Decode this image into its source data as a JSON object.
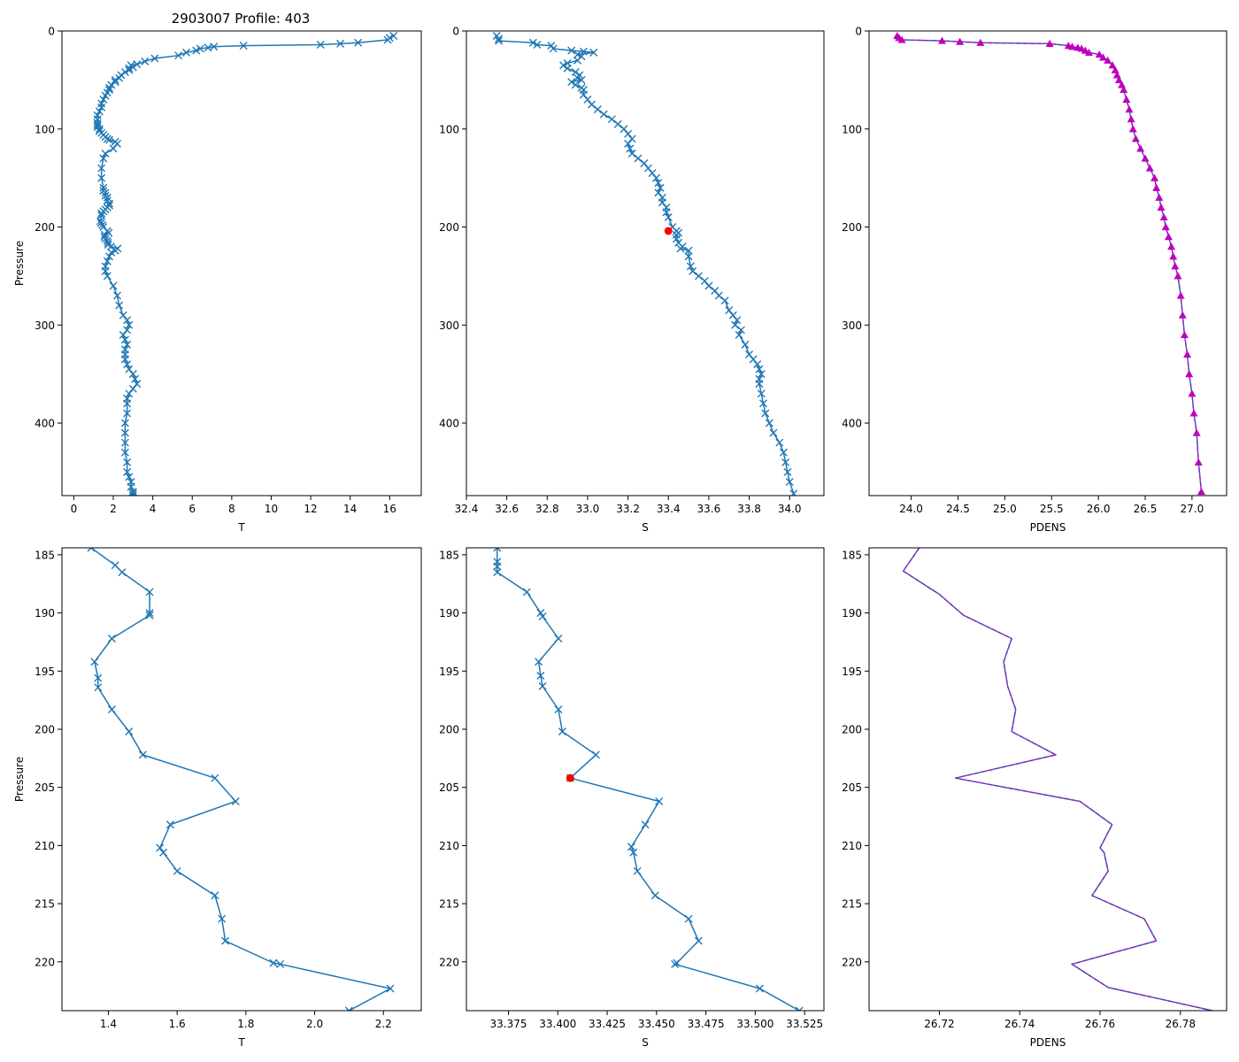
{
  "figure": {
    "title": "2903007 Profile: 403"
  },
  "colors": {
    "line": "#1f77b4",
    "density": "#bf00bf",
    "highlight": "#ff0000",
    "axis": "#000000"
  },
  "chart_data": [
    {
      "id": "top-temperature",
      "type": "line",
      "marker": "x",
      "title": "2903007 Profile: 403",
      "xlabel": "T",
      "ylabel": "Pressure",
      "xlim": [
        -0.6,
        17.6
      ],
      "ylim": [
        474,
        0
      ],
      "xticks": [
        0,
        2,
        4,
        6,
        8,
        10,
        12,
        14,
        16
      ],
      "xtick_labels": [
        "0",
        "2",
        "4",
        "6",
        "8",
        "10",
        "12",
        "14",
        "16"
      ],
      "yticks": [
        0,
        100,
        200,
        300,
        400
      ],
      "ytick_labels": [
        "0",
        "100",
        "200",
        "300",
        "400"
      ],
      "x": [
        16.2,
        16.0,
        15.9,
        14.4,
        13.5,
        12.5,
        8.6,
        7.1,
        6.8,
        6.4,
        6.2,
        5.7,
        5.3,
        4.1,
        3.6,
        3.2,
        2.9,
        3.0,
        2.8,
        2.8,
        2.6,
        2.4,
        2.3,
        2.1,
        2.1,
        1.9,
        1.8,
        1.8,
        1.7,
        1.6,
        1.5,
        1.4,
        1.4,
        1.3,
        1.2,
        1.2,
        1.2,
        1.2,
        1.2,
        1.3,
        1.3,
        1.4,
        1.5,
        1.6,
        1.7,
        1.8,
        2.1,
        2.2,
        2.0,
        1.6,
        1.5,
        1.4,
        1.4,
        1.5,
        1.5,
        1.6,
        1.6,
        1.7,
        1.7,
        1.8,
        1.8,
        1.7,
        1.6,
        1.5,
        1.4,
        1.4,
        1.35,
        1.38,
        1.45,
        1.5,
        1.7,
        1.77,
        1.57,
        1.55,
        1.6,
        1.7,
        1.73,
        1.74,
        1.88,
        2.22,
        2.1,
        1.9,
        1.8,
        1.7,
        1.6,
        1.6,
        1.7,
        2.0,
        2.2,
        2.3,
        2.5,
        2.7,
        2.8,
        2.7,
        2.5,
        2.6,
        2.7,
        2.6,
        2.6,
        2.6,
        2.7,
        2.8,
        3.0,
        3.1,
        3.2,
        3.0,
        2.8,
        2.7,
        2.7,
        2.7,
        2.6,
        2.6,
        2.6,
        2.6,
        2.7,
        2.7,
        2.8,
        2.9,
        2.9,
        3.0,
        3.0,
        3.0
      ],
      "y": [
        5,
        7,
        9,
        12,
        13,
        14,
        15,
        16,
        17,
        18,
        20,
        22,
        25,
        28,
        31,
        34,
        35,
        37,
        38,
        40,
        42,
        45,
        48,
        50,
        52,
        55,
        58,
        60,
        63,
        66,
        70,
        74,
        78,
        82,
        86,
        90,
        94,
        96,
        98,
        100,
        102,
        104,
        106,
        108,
        110,
        111,
        113,
        115,
        120,
        125,
        130,
        140,
        150,
        160,
        163,
        165,
        168,
        170,
        173,
        176,
        178,
        180,
        182,
        184,
        186,
        188,
        194,
        196,
        198,
        200,
        204,
        206,
        208,
        210,
        212,
        214,
        216,
        218,
        220,
        222,
        224,
        226,
        230,
        235,
        240,
        245,
        250,
        260,
        270,
        280,
        290,
        295,
        300,
        305,
        310,
        315,
        320,
        325,
        330,
        335,
        340,
        345,
        350,
        355,
        360,
        365,
        370,
        375,
        380,
        390,
        400,
        410,
        420,
        430,
        440,
        450,
        455,
        460,
        465,
        470,
        472,
        474
      ]
    },
    {
      "id": "top-salinity",
      "type": "line",
      "marker": "x",
      "title": "",
      "xlabel": "S",
      "ylabel": "",
      "xlim": [
        32.4,
        34.17
      ],
      "ylim": [
        474,
        0
      ],
      "xticks": [
        32.4,
        32.6,
        32.8,
        33.0,
        33.2,
        33.4,
        33.6,
        33.8,
        34.0
      ],
      "xtick_labels": [
        "32.4",
        "32.6",
        "32.8",
        "33.0",
        "33.2",
        "33.4",
        "33.6",
        "33.8",
        "34.0"
      ],
      "yticks": [
        0,
        100,
        200,
        300,
        400
      ],
      "ytick_labels": [
        "0",
        "100",
        "200",
        "300",
        "400"
      ],
      "highlight": {
        "x": 33.4,
        "y": 204
      },
      "x": [
        32.55,
        32.56,
        32.56,
        32.73,
        32.75,
        32.82,
        32.83,
        32.92,
        32.98,
        33.03,
        32.95,
        32.97,
        32.95,
        32.9,
        32.88,
        32.9,
        32.94,
        32.96,
        32.95,
        32.97,
        32.92,
        32.94,
        32.97,
        32.98,
        32.98,
        33.0,
        33.02,
        33.05,
        33.08,
        33.12,
        33.15,
        33.18,
        33.2,
        33.22,
        33.2,
        33.21,
        33.22,
        33.25,
        33.28,
        33.3,
        33.32,
        33.34,
        33.35,
        33.36,
        33.35,
        33.37,
        33.37,
        33.39,
        33.39,
        33.4,
        33.42,
        33.44,
        33.45,
        33.44,
        33.44,
        33.45,
        33.47,
        33.46,
        33.5,
        33.5,
        33.51,
        33.52,
        33.55,
        33.58,
        33.6,
        33.63,
        33.65,
        33.68,
        33.7,
        33.72,
        33.74,
        33.73,
        33.76,
        33.75,
        33.78,
        33.8,
        33.82,
        33.84,
        33.85,
        33.86,
        33.85,
        33.85,
        33.86,
        33.87,
        33.88,
        33.9,
        33.92,
        33.95,
        33.97,
        33.98,
        33.99,
        34.0,
        34.02
      ],
      "y": [
        5,
        8,
        10,
        12,
        14,
        15,
        18,
        20,
        21,
        22,
        24,
        26,
        30,
        33,
        35,
        38,
        42,
        45,
        48,
        50,
        52,
        55,
        58,
        60,
        65,
        70,
        75,
        80,
        85,
        90,
        95,
        100,
        105,
        110,
        115,
        120,
        125,
        130,
        135,
        140,
        145,
        150,
        155,
        160,
        165,
        170,
        175,
        180,
        185,
        190,
        200,
        204,
        206,
        208,
        212,
        216,
        220,
        222,
        224,
        230,
        240,
        245,
        250,
        255,
        260,
        265,
        270,
        275,
        285,
        290,
        295,
        300,
        305,
        310,
        320,
        330,
        335,
        340,
        345,
        350,
        355,
        360,
        370,
        380,
        390,
        400,
        410,
        420,
        430,
        440,
        450,
        460,
        472
      ]
    },
    {
      "id": "top-density",
      "type": "line",
      "marker": "triangle",
      "title": "",
      "xlabel": "PDENS",
      "ylabel": "",
      "xlim": [
        23.55,
        27.37
      ],
      "ylim": [
        474,
        0
      ],
      "xticks": [
        24.0,
        24.5,
        25.0,
        25.5,
        26.0,
        26.5,
        27.0
      ],
      "xtick_labels": [
        "24.0",
        "24.5",
        "25.0",
        "25.5",
        "26.0",
        "26.5",
        "27.0"
      ],
      "yticks": [
        0,
        100,
        200,
        300,
        400
      ],
      "ytick_labels": [
        "0",
        "100",
        "200",
        "300",
        "400"
      ],
      "x": [
        23.85,
        23.87,
        23.9,
        24.33,
        24.52,
        24.74,
        25.48,
        25.68,
        25.72,
        25.78,
        25.82,
        25.86,
        25.9,
        26.01,
        26.05,
        26.1,
        26.15,
        26.18,
        26.2,
        26.22,
        26.25,
        26.27,
        26.3,
        26.33,
        26.35,
        26.37,
        26.4,
        26.45,
        26.5,
        26.55,
        26.6,
        26.62,
        26.65,
        26.67,
        26.7,
        26.72,
        26.75,
        26.78,
        26.8,
        26.82,
        26.85,
        26.88,
        26.9,
        26.92,
        26.95,
        26.97,
        27.0,
        27.02,
        27.05,
        27.07,
        27.1
      ],
      "y": [
        5,
        7,
        9,
        10,
        11,
        12,
        13,
        15,
        16,
        17,
        18,
        20,
        22,
        24,
        27,
        30,
        35,
        40,
        45,
        50,
        55,
        60,
        70,
        80,
        90,
        100,
        110,
        120,
        130,
        140,
        150,
        160,
        170,
        180,
        190,
        200,
        210,
        220,
        230,
        240,
        250,
        270,
        290,
        310,
        330,
        350,
        370,
        390,
        410,
        440,
        470
      ]
    },
    {
      "id": "bottom-temperature",
      "type": "line",
      "marker": "x",
      "title": "",
      "xlabel": "T",
      "ylabel": "Pressure",
      "xlim": [
        1.265,
        2.31
      ],
      "ylim": [
        224.2,
        184.4
      ],
      "xticks": [
        1.4,
        1.6,
        1.8,
        2.0,
        2.2
      ],
      "xtick_labels": [
        "1.4",
        "1.6",
        "1.8",
        "2.0",
        "2.2"
      ],
      "yticks": [
        185,
        190,
        195,
        200,
        205,
        210,
        215,
        220
      ],
      "ytick_labels": [
        "185",
        "190",
        "195",
        "200",
        "205",
        "210",
        "215",
        "220"
      ],
      "x": [
        1.35,
        1.42,
        1.44,
        1.52,
        1.52,
        1.52,
        1.41,
        1.36,
        1.37,
        1.37,
        1.41,
        1.46,
        1.5,
        1.71,
        1.77,
        1.58,
        1.55,
        1.56,
        1.6,
        1.71,
        1.73,
        1.74,
        1.88,
        1.9,
        2.22,
        2.1
      ],
      "y": [
        184.4,
        185.9,
        186.5,
        188.2,
        190.0,
        190.2,
        192.2,
        194.2,
        195.6,
        196.4,
        198.3,
        200.2,
        202.2,
        204.2,
        206.2,
        208.2,
        210.2,
        210.6,
        212.2,
        214.3,
        216.3,
        218.2,
        220.1,
        220.2,
        222.3,
        224.2
      ]
    },
    {
      "id": "bottom-salinity",
      "type": "line",
      "marker": "x",
      "title": "",
      "xlabel": "S",
      "ylabel": "",
      "xlim": [
        33.3537,
        33.5348
      ],
      "ylim": [
        224.2,
        184.4
      ],
      "xticks": [
        33.375,
        33.4,
        33.425,
        33.45,
        33.475,
        33.5,
        33.525
      ],
      "xtick_labels": [
        "33.375",
        "33.400",
        "33.425",
        "33.450",
        "33.475",
        "33.500",
        "33.525"
      ],
      "yticks": [
        185,
        190,
        195,
        200,
        205,
        210,
        215,
        220
      ],
      "ytick_labels": [
        "185",
        "190",
        "195",
        "200",
        "205",
        "210",
        "215",
        "220"
      ],
      "highlight": {
        "x": 33.4063,
        "y": 204.2
      },
      "x": [
        33.3693,
        33.3693,
        33.3693,
        33.3693,
        33.3843,
        33.3913,
        33.3923,
        33.4003,
        33.3903,
        33.3913,
        33.3923,
        33.4003,
        33.4023,
        33.4193,
        33.4063,
        33.4513,
        33.4443,
        33.4373,
        33.4383,
        33.4403,
        33.4493,
        33.4663,
        33.4713,
        33.4603,
        33.4593,
        33.5023,
        33.5223
      ],
      "y": [
        184.4,
        185.6,
        186.0,
        186.5,
        188.2,
        190.0,
        190.3,
        192.2,
        194.2,
        195.4,
        196.3,
        198.3,
        200.2,
        202.2,
        204.2,
        206.2,
        208.2,
        210.1,
        210.6,
        212.2,
        214.3,
        216.3,
        218.2,
        220.1,
        220.2,
        222.3,
        224.2
      ]
    },
    {
      "id": "bottom-density",
      "type": "line",
      "marker": "none",
      "title": "",
      "xlabel": "PDENS",
      "ylabel": "",
      "xlim": [
        26.7025,
        26.7915
      ],
      "ylim": [
        224.2,
        184.4
      ],
      "xticks": [
        26.72,
        26.74,
        26.76,
        26.78
      ],
      "xtick_labels": [
        "26.72",
        "26.74",
        "26.76",
        "26.78"
      ],
      "yticks": [
        185,
        190,
        195,
        200,
        205,
        210,
        215,
        220
      ],
      "ytick_labels": [
        "185",
        "190",
        "195",
        "200",
        "205",
        "210",
        "215",
        "220"
      ],
      "x": [
        26.715,
        26.711,
        26.72,
        26.726,
        26.738,
        26.736,
        26.737,
        26.739,
        26.738,
        26.749,
        26.724,
        26.755,
        26.763,
        26.76,
        26.761,
        26.762,
        26.758,
        26.771,
        26.774,
        26.753,
        26.762,
        26.788
      ],
      "y": [
        184.4,
        186.4,
        188.4,
        190.2,
        192.2,
        194.2,
        196.3,
        198.3,
        200.2,
        202.2,
        204.2,
        206.2,
        208.2,
        210.2,
        210.6,
        212.2,
        214.3,
        216.3,
        218.2,
        220.2,
        222.2,
        224.2
      ]
    }
  ]
}
